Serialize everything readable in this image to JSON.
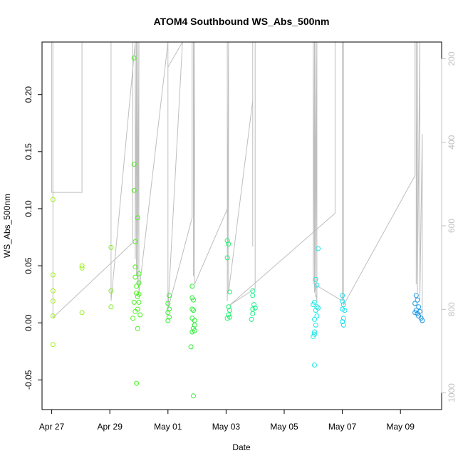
{
  "chart_data": {
    "type": "scatter",
    "title": "ATOM4 Southbound WS_Abs_500nm",
    "xlabel": "Date",
    "ylabel": "WS_Abs_500nm",
    "x_axis": {
      "type": "date",
      "range": [
        "2018-04-26T16:00",
        "2018-05-10T10:00"
      ],
      "ticks": [
        {
          "value": "2018-04-27",
          "label": "Apr 27"
        },
        {
          "value": "2018-04-29",
          "label": "Apr 29"
        },
        {
          "value": "2018-05-01",
          "label": "May 01"
        },
        {
          "value": "2018-05-03",
          "label": "May 03"
        },
        {
          "value": "2018-05-05",
          "label": "May 05"
        },
        {
          "value": "2018-05-07",
          "label": "May 07"
        },
        {
          "value": "2018-05-09",
          "label": "May 09"
        }
      ]
    },
    "y_axis": {
      "range": [
        -0.076,
        0.246
      ],
      "ticks": [
        {
          "value": -0.05,
          "label": "-0.05"
        },
        {
          "value": 0.0,
          "label": "0.00"
        },
        {
          "value": 0.05,
          "label": "0.05"
        },
        {
          "value": 0.1,
          "label": "0.10"
        },
        {
          "value": 0.15,
          "label": "0.15"
        },
        {
          "value": 0.2,
          "label": "0.20"
        }
      ]
    },
    "y2_axis": {
      "reversed": true,
      "range": [
        1040,
        160
      ],
      "ticks": [
        {
          "value": 200,
          "label": "200"
        },
        {
          "value": 400,
          "label": "400"
        },
        {
          "value": 600,
          "label": "600"
        },
        {
          "value": 800,
          "label": "800"
        },
        {
          "value": 1000,
          "label": "1000"
        }
      ]
    },
    "grid": false,
    "legend": "none",
    "colors": {
      "line": "#bebebe",
      "axis": "#000000",
      "right_axis": "#c0c0c0"
    },
    "points": [
      {
        "x": "2018-04-27T01:00",
        "y": 0.108,
        "color": "#a6f020"
      },
      {
        "x": "2018-04-27T01:00",
        "y": 0.042,
        "color": "#a6f020"
      },
      {
        "x": "2018-04-27T01:00",
        "y": 0.028,
        "color": "#a6f020"
      },
      {
        "x": "2018-04-27T01:00",
        "y": 0.019,
        "color": "#a6f020"
      },
      {
        "x": "2018-04-27T01:00",
        "y": 0.006,
        "color": "#a6f020"
      },
      {
        "x": "2018-04-27T01:00",
        "y": -0.019,
        "color": "#a6f020"
      },
      {
        "x": "2018-04-28T01:00",
        "y": 0.05,
        "color": "#9cf020"
      },
      {
        "x": "2018-04-28T01:00",
        "y": 0.048,
        "color": "#9cf020"
      },
      {
        "x": "2018-04-28T01:00",
        "y": 0.009,
        "color": "#9cf020"
      },
      {
        "x": "2018-04-29T01:00",
        "y": 0.066,
        "color": "#7ff020"
      },
      {
        "x": "2018-04-29T01:00",
        "y": 0.028,
        "color": "#7ff020"
      },
      {
        "x": "2018-04-29T01:00",
        "y": 0.014,
        "color": "#7ff020"
      },
      {
        "x": "2018-04-29T20:00",
        "y": 0.232,
        "color": "#50f020"
      },
      {
        "x": "2018-04-29T20:00",
        "y": 0.139,
        "color": "#50f020"
      },
      {
        "x": "2018-04-29T20:00",
        "y": 0.116,
        "color": "#50f020"
      },
      {
        "x": "2018-04-29T21:00",
        "y": 0.071,
        "color": "#50f020"
      },
      {
        "x": "2018-04-29T21:00",
        "y": 0.049,
        "color": "#50f020"
      },
      {
        "x": "2018-04-29T21:00",
        "y": 0.04,
        "color": "#50f020"
      },
      {
        "x": "2018-04-29T22:00",
        "y": 0.032,
        "color": "#50f020"
      },
      {
        "x": "2018-04-29T22:00",
        "y": 0.026,
        "color": "#50f020"
      },
      {
        "x": "2018-04-29T20:00",
        "y": 0.018,
        "color": "#50f020"
      },
      {
        "x": "2018-04-29T21:00",
        "y": 0.01,
        "color": "#50f020"
      },
      {
        "x": "2018-04-29T19:00",
        "y": 0.004,
        "color": "#50f020"
      },
      {
        "x": "2018-04-29T23:00",
        "y": 0.092,
        "color": "#48f020"
      },
      {
        "x": "2018-04-30T00:00",
        "y": 0.043,
        "color": "#48f020"
      },
      {
        "x": "2018-04-30T00:00",
        "y": 0.035,
        "color": "#48f020"
      },
      {
        "x": "2018-04-29T23:00",
        "y": 0.023,
        "color": "#48f020"
      },
      {
        "x": "2018-04-30T00:00",
        "y": 0.025,
        "color": "#48f020"
      },
      {
        "x": "2018-04-30T00:00",
        "y": 0.018,
        "color": "#48f020"
      },
      {
        "x": "2018-04-29T23:00",
        "y": 0.012,
        "color": "#48f020"
      },
      {
        "x": "2018-04-30T01:00",
        "y": 0.007,
        "color": "#48f020"
      },
      {
        "x": "2018-04-29T23:00",
        "y": -0.005,
        "color": "#48f020"
      },
      {
        "x": "2018-04-29T22:00",
        "y": -0.053,
        "color": "#48f020"
      },
      {
        "x": "2018-05-01T01:00",
        "y": 0.024,
        "color": "#35f030"
      },
      {
        "x": "2018-05-01T00:00",
        "y": 0.017,
        "color": "#35f030"
      },
      {
        "x": "2018-05-01T01:00",
        "y": 0.012,
        "color": "#35f030"
      },
      {
        "x": "2018-05-01T00:00",
        "y": 0.009,
        "color": "#35f030"
      },
      {
        "x": "2018-05-01T01:00",
        "y": 0.005,
        "color": "#35f030"
      },
      {
        "x": "2018-05-01T00:00",
        "y": 0.002,
        "color": "#35f030"
      },
      {
        "x": "2018-05-01T20:00",
        "y": 0.032,
        "color": "#2ff036"
      },
      {
        "x": "2018-05-01T20:00",
        "y": 0.022,
        "color": "#2ff036"
      },
      {
        "x": "2018-05-01T21:00",
        "y": 0.02,
        "color": "#2ff036"
      },
      {
        "x": "2018-05-01T20:00",
        "y": 0.012,
        "color": "#2ff036"
      },
      {
        "x": "2018-05-01T21:00",
        "y": 0.011,
        "color": "#2ff036"
      },
      {
        "x": "2018-05-01T20:00",
        "y": 0.004,
        "color": "#2ff036"
      },
      {
        "x": "2018-05-01T22:00",
        "y": 0.002,
        "color": "#2ff036"
      },
      {
        "x": "2018-05-01T22:00",
        "y": -0.002,
        "color": "#2ff036"
      },
      {
        "x": "2018-05-01T21:00",
        "y": -0.005,
        "color": "#2ff036"
      },
      {
        "x": "2018-05-01T20:00",
        "y": -0.008,
        "color": "#2ff036"
      },
      {
        "x": "2018-05-01T22:00",
        "y": -0.007,
        "color": "#2ff036"
      },
      {
        "x": "2018-05-01T19:00",
        "y": -0.021,
        "color": "#2ff036"
      },
      {
        "x": "2018-05-01T21:00",
        "y": -0.064,
        "color": "#2ff036"
      },
      {
        "x": "2018-05-03T01:00",
        "y": 0.072,
        "color": "#20f070"
      },
      {
        "x": "2018-05-03T02:00",
        "y": 0.069,
        "color": "#20f070"
      },
      {
        "x": "2018-05-03T01:00",
        "y": 0.057,
        "color": "#20f070"
      },
      {
        "x": "2018-05-03T03:00",
        "y": 0.027,
        "color": "#20f070"
      },
      {
        "x": "2018-05-03T02:00",
        "y": 0.014,
        "color": "#20f070"
      },
      {
        "x": "2018-05-03T03:00",
        "y": 0.011,
        "color": "#20f070"
      },
      {
        "x": "2018-05-03T02:00",
        "y": 0.007,
        "color": "#20f070"
      },
      {
        "x": "2018-05-03T01:00",
        "y": 0.004,
        "color": "#20f070"
      },
      {
        "x": "2018-05-03T03:00",
        "y": 0.005,
        "color": "#20f070"
      },
      {
        "x": "2018-05-03T22:00",
        "y": 0.028,
        "color": "#20f08a"
      },
      {
        "x": "2018-05-03T22:00",
        "y": 0.024,
        "color": "#20f08a"
      },
      {
        "x": "2018-05-03T23:00",
        "y": 0.016,
        "color": "#20f08a"
      },
      {
        "x": "2018-05-03T22:00",
        "y": 0.012,
        "color": "#20f08a"
      },
      {
        "x": "2018-05-03T22:00",
        "y": 0.008,
        "color": "#20f08a"
      },
      {
        "x": "2018-05-03T21:00",
        "y": 0.003,
        "color": "#20f08a"
      },
      {
        "x": "2018-05-04T00:00",
        "y": 0.013,
        "color": "#20f08a"
      },
      {
        "x": "2018-05-06T04:00",
        "y": 0.065,
        "color": "#20e8e8"
      },
      {
        "x": "2018-05-06T02:00",
        "y": 0.038,
        "color": "#20e8e8"
      },
      {
        "x": "2018-05-06T03:00",
        "y": 0.033,
        "color": "#20e8e8"
      },
      {
        "x": "2018-05-06T01:00",
        "y": 0.018,
        "color": "#20e8e8"
      },
      {
        "x": "2018-05-06T03:00",
        "y": 0.014,
        "color": "#20e8e8"
      },
      {
        "x": "2018-05-06T04:00",
        "y": 0.013,
        "color": "#20e8e8"
      },
      {
        "x": "2018-05-06T02:00",
        "y": 0.011,
        "color": "#20e8e8"
      },
      {
        "x": "2018-05-06T03:00",
        "y": 0.006,
        "color": "#20e8e8"
      },
      {
        "x": "2018-05-06T01:00",
        "y": 0.003,
        "color": "#20e8e8"
      },
      {
        "x": "2018-05-06T02:00",
        "y": -0.002,
        "color": "#20e8e8"
      },
      {
        "x": "2018-05-06T01:00",
        "y": -0.008,
        "color": "#20e8e8"
      },
      {
        "x": "2018-05-06T00:00",
        "y": -0.012,
        "color": "#20e8e8"
      },
      {
        "x": "2018-05-06T01:00",
        "y": -0.01,
        "color": "#20e8e8"
      },
      {
        "x": "2018-05-06T00:00",
        "y": 0.016,
        "color": "#20e8e8"
      },
      {
        "x": "2018-05-06T01:00",
        "y": -0.037,
        "color": "#20e8e8"
      },
      {
        "x": "2018-05-07T00:00",
        "y": 0.024,
        "color": "#20e0f0"
      },
      {
        "x": "2018-05-07T00:00",
        "y": 0.019,
        "color": "#20e0f0"
      },
      {
        "x": "2018-05-07T01:00",
        "y": 0.016,
        "color": "#20e0f0"
      },
      {
        "x": "2018-05-07T00:00",
        "y": 0.012,
        "color": "#20e0f0"
      },
      {
        "x": "2018-05-07T02:00",
        "y": 0.011,
        "color": "#20e0f0"
      },
      {
        "x": "2018-05-07T01:00",
        "y": 0.004,
        "color": "#20e0f0"
      },
      {
        "x": "2018-05-07T00:00",
        "y": 0.001,
        "color": "#20e0f0"
      },
      {
        "x": "2018-05-07T01:00",
        "y": -0.002,
        "color": "#20e0f0"
      },
      {
        "x": "2018-05-09T13:00",
        "y": 0.024,
        "color": "#2098e0"
      },
      {
        "x": "2018-05-09T14:00",
        "y": 0.02,
        "color": "#2098e0"
      },
      {
        "x": "2018-05-09T12:00",
        "y": 0.017,
        "color": "#2098e0"
      },
      {
        "x": "2018-05-09T15:00",
        "y": 0.014,
        "color": "#2098e0"
      },
      {
        "x": "2018-05-09T13:00",
        "y": 0.011,
        "color": "#2098e0"
      },
      {
        "x": "2018-05-09T16:00",
        "y": 0.01,
        "color": "#2098e0"
      },
      {
        "x": "2018-05-09T14:00",
        "y": 0.008,
        "color": "#2098e0"
      },
      {
        "x": "2018-05-09T15:00",
        "y": 0.006,
        "color": "#2098e0"
      },
      {
        "x": "2018-05-09T17:00",
        "y": 0.004,
        "color": "#2098e0"
      },
      {
        "x": "2018-05-09T18:00",
        "y": 0.002,
        "color": "#2098e0"
      },
      {
        "x": "2018-05-09T12:00",
        "y": 0.009,
        "color": "#2098e0"
      }
    ],
    "pressure_line": [
      [
        "2018-04-27T00:00",
        160
      ],
      [
        "2018-04-27T00:00",
        520
      ],
      [
        "2018-04-28T01:00",
        520
      ],
      [
        "2018-04-28T01:00",
        160
      ],
      [
        "2018-04-27T01:00",
        160
      ],
      [
        "2018-04-27T01:00",
        820
      ],
      [
        "2018-04-29T19:00",
        640
      ],
      [
        "2018-04-29T19:00",
        160
      ],
      [
        "2018-04-29T01:00",
        160
      ],
      [
        "2018-04-29T01:00",
        780
      ],
      [
        "2018-04-29T21:00",
        160
      ],
      [
        "2018-04-29T21:00",
        680
      ],
      [
        "2018-04-29T22:00",
        160
      ],
      [
        "2018-04-29T22:00",
        720
      ],
      [
        "2018-04-29T23:00",
        160
      ],
      [
        "2018-04-29T23:00",
        740
      ],
      [
        "2018-04-30T00:00",
        160
      ],
      [
        "2018-04-30T00:00",
        760
      ],
      [
        "2018-05-01T00:00",
        160
      ],
      [
        "2018-05-01T00:00",
        810
      ],
      [
        "2018-05-01T00:00",
        220
      ],
      [
        "2018-05-01T12:00",
        160
      ],
      [
        "2018-05-01T00:00",
        800
      ],
      [
        "2018-05-01T20:00",
        580
      ],
      [
        "2018-05-01T20:00",
        160
      ],
      [
        "2018-05-01T21:00",
        160
      ],
      [
        "2018-05-01T21:00",
        720
      ],
      [
        "2018-05-01T22:00",
        160
      ],
      [
        "2018-05-01T22:00",
        740
      ],
      [
        "2018-05-03T01:00",
        560
      ],
      [
        "2018-05-03T01:00",
        160
      ],
      [
        "2018-05-03T01:00",
        780
      ],
      [
        "2018-05-03T02:00",
        160
      ],
      [
        "2018-05-03T02:00",
        680
      ],
      [
        "2018-05-03T02:00",
        760
      ],
      [
        "2018-05-03T22:00",
        300
      ],
      [
        "2018-05-03T22:00",
        160
      ],
      [
        "2018-05-03T22:00",
        650
      ],
      [
        "2018-05-03T22:00",
        160
      ],
      [
        "2018-05-04T00:00",
        160
      ],
      [
        "2018-05-04T00:00",
        750
      ],
      [
        "2018-05-03T03:00",
        790
      ],
      [
        "2018-05-06T18:00",
        570
      ],
      [
        "2018-05-06T18:00",
        160
      ],
      [
        "2018-05-06T00:00",
        160
      ],
      [
        "2018-05-06T00:00",
        740
      ],
      [
        "2018-05-06T01:00",
        160
      ],
      [
        "2018-05-06T01:00",
        760
      ],
      [
        "2018-05-06T02:00",
        160
      ],
      [
        "2018-05-06T02:00",
        770
      ],
      [
        "2018-05-06T03:00",
        160
      ],
      [
        "2018-05-06T03:00",
        780
      ],
      [
        "2018-05-06T01:00",
        740
      ],
      [
        "2018-05-07T00:00",
        780
      ],
      [
        "2018-05-07T00:00",
        160
      ],
      [
        "2018-05-07T01:00",
        160
      ],
      [
        "2018-05-07T01:00",
        750
      ],
      [
        "2018-05-07T01:00",
        790
      ],
      [
        "2018-05-09T12:00",
        480
      ],
      [
        "2018-05-09T12:00",
        160
      ],
      [
        "2018-05-09T13:00",
        160
      ],
      [
        "2018-05-09T13:00",
        740
      ],
      [
        "2018-05-09T14:00",
        160
      ],
      [
        "2018-05-09T14:00",
        760
      ],
      [
        "2018-05-09T16:00",
        160
      ],
      [
        "2018-05-09T16:00",
        780
      ],
      [
        "2018-05-09T18:00",
        380
      ],
      [
        "2018-05-09T18:00",
        820
      ]
    ]
  }
}
